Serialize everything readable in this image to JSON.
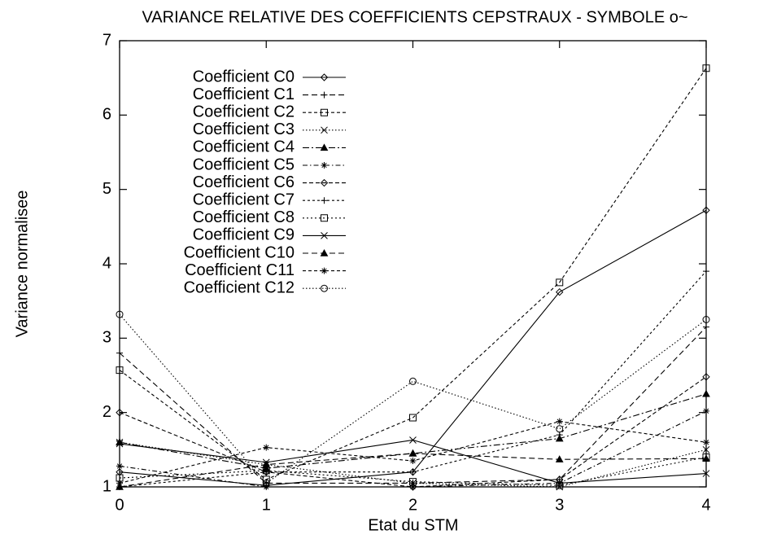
{
  "chart_data": {
    "type": "line",
    "title": "VARIANCE RELATIVE DES COEFFICIENTS CEPSTRAUX - SYMBOLE o~",
    "xlabel": "Etat du STM",
    "ylabel": "Variance normalisee",
    "x": [
      0,
      1,
      2,
      3,
      4
    ],
    "xlim": [
      0,
      4
    ],
    "xticks": [
      0,
      1,
      2,
      3,
      4
    ],
    "ylim": [
      1,
      7
    ],
    "yticks": [
      1,
      2,
      3,
      4,
      5,
      6,
      7
    ],
    "grid": false,
    "legend": "top-left",
    "series": [
      {
        "name": "Coefficient C0",
        "color": "#000000",
        "dash": "none",
        "marker": "diamond",
        "values": [
          1.2,
          1.02,
          1.2,
          3.62,
          4.72
        ]
      },
      {
        "name": "Coefficient C1",
        "color": "#000000",
        "dash": "7 4",
        "marker": "plus",
        "values": [
          2.8,
          1.05,
          1.05,
          1.1,
          3.15
        ]
      },
      {
        "name": "Coefficient C2",
        "color": "#000000",
        "dash": "4 3",
        "marker": "square",
        "values": [
          2.57,
          1.1,
          1.93,
          3.75,
          6.63
        ]
      },
      {
        "name": "Coefficient C3",
        "color": "#000000",
        "dash": "1.5 2.5",
        "marker": "cross",
        "values": [
          1.6,
          1.3,
          1.05,
          1.0,
          1.5
        ]
      },
      {
        "name": "Coefficient C4",
        "color": "#000000",
        "dash": "8 3 2 3",
        "marker": "triangle",
        "values": [
          1.6,
          1.25,
          1.45,
          1.65,
          2.25
        ]
      },
      {
        "name": "Coefficient C5",
        "color": "#000000",
        "dash": "6 3 1.5 3",
        "marker": "star",
        "values": [
          1.28,
          1.0,
          1.0,
          1.05,
          2.02
        ]
      },
      {
        "name": "Coefficient C6",
        "color": "#000000",
        "dash": "5 3",
        "marker": "diamond",
        "values": [
          2.0,
          1.2,
          1.0,
          1.1,
          2.48
        ]
      },
      {
        "name": "Coefficient C7",
        "color": "#000000",
        "dash": "3 3",
        "marker": "plus",
        "values": [
          1.0,
          1.2,
          1.2,
          1.7,
          3.9
        ]
      },
      {
        "name": "Coefficient C8",
        "color": "#000000",
        "dash": "2 3",
        "marker": "square",
        "values": [
          1.12,
          1.22,
          1.07,
          1.02,
          1.4
        ]
      },
      {
        "name": "Coefficient C9",
        "color": "#000000",
        "dash": "none",
        "marker": "cross",
        "values": [
          1.58,
          1.33,
          1.63,
          1.05,
          1.18
        ]
      },
      {
        "name": "Coefficient C10",
        "color": "#000000",
        "dash": "7 4",
        "marker": "triangle",
        "values": [
          1.0,
          1.3,
          1.45,
          1.37,
          1.38
        ]
      },
      {
        "name": "Coefficient C11",
        "color": "#000000",
        "dash": "4 3",
        "marker": "star",
        "values": [
          1.05,
          1.53,
          1.35,
          1.88,
          1.6
        ]
      },
      {
        "name": "Coefficient C12",
        "color": "#000000",
        "dash": "1.5 2.5",
        "marker": "circle",
        "values": [
          3.32,
          1.05,
          2.42,
          1.78,
          3.25
        ]
      }
    ]
  }
}
